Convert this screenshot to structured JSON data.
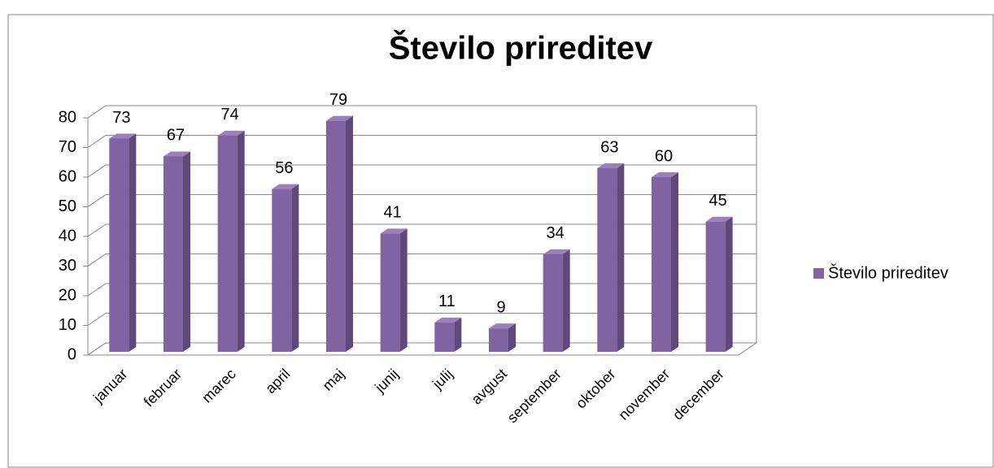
{
  "chart_data": {
    "type": "bar3d",
    "title": "Število prireditev",
    "categories": [
      "januar",
      "februar",
      "marec",
      "april",
      "maj",
      "junij",
      "julij",
      "avgust",
      "september",
      "oktober",
      "november",
      "december"
    ],
    "series": [
      {
        "name": "Število prireditev",
        "color": "#8064a2",
        "values": [
          73,
          67,
          74,
          56,
          79,
          41,
          11,
          9,
          34,
          63,
          60,
          45
        ]
      }
    ],
    "ylim": [
      0,
      80
    ],
    "yticks": [
      0,
      10,
      20,
      30,
      40,
      50,
      60,
      70,
      80
    ],
    "grid": true,
    "legend": "right"
  }
}
